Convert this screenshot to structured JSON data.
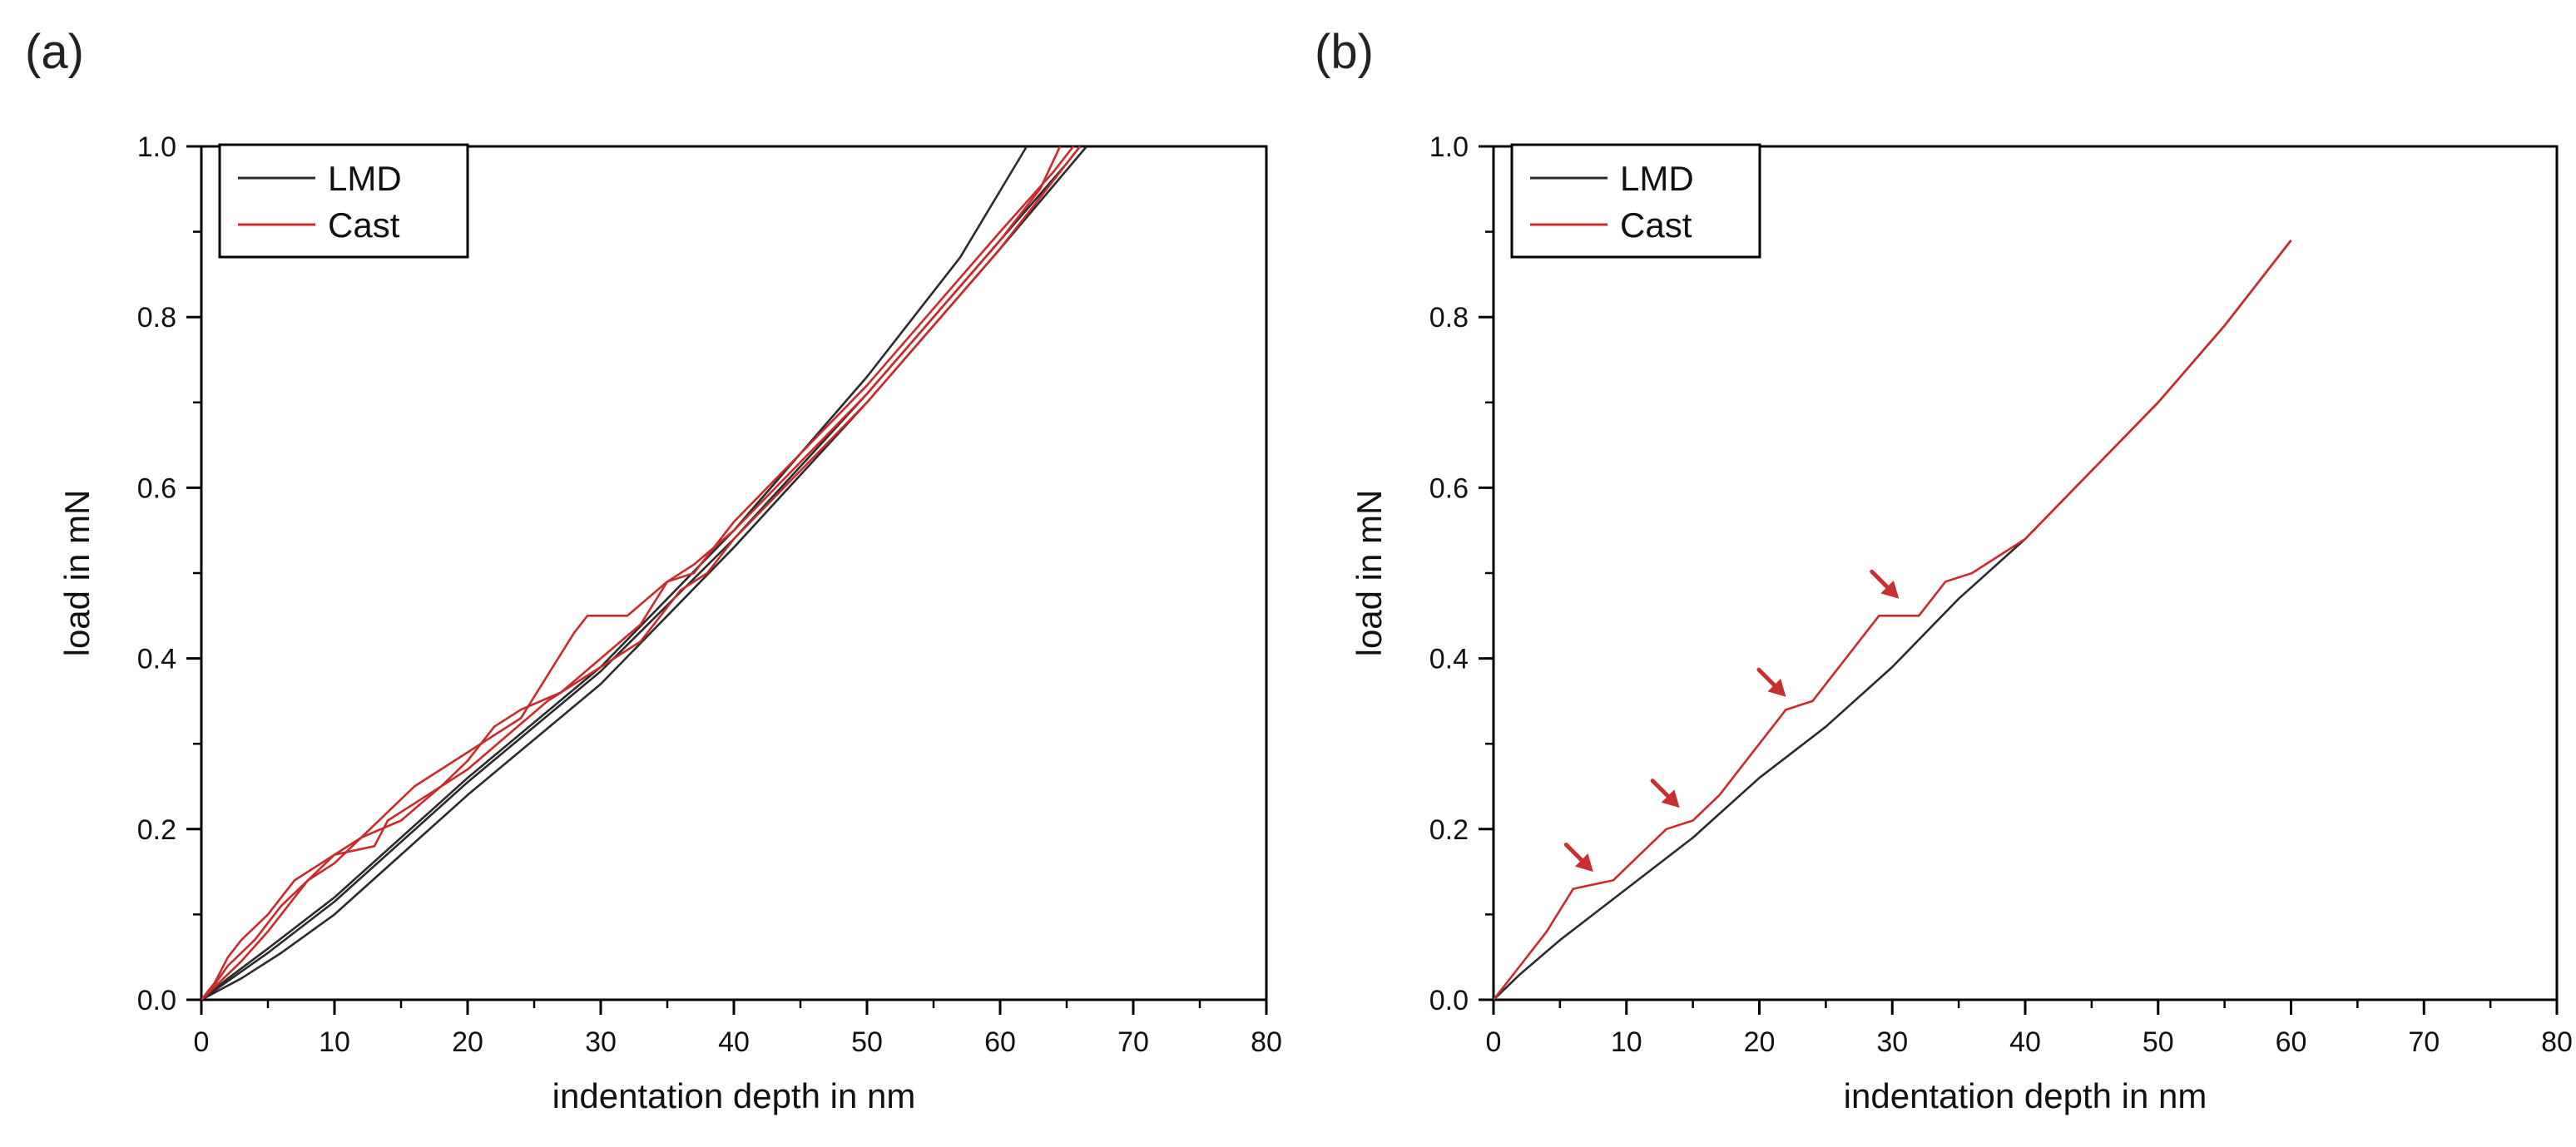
{
  "colors": {
    "lmd": "#2b2b2b",
    "cast": "#cc2a2a",
    "axis": "#000000",
    "arrow": "#c83030"
  },
  "chart_data": [
    {
      "type": "line",
      "panel_label": "(a)",
      "xlabel": "indentation depth in nm",
      "ylabel": "load in mN",
      "xlim": [
        0,
        80
      ],
      "ylim": [
        0,
        1.0
      ],
      "xticks": [
        "0",
        "10",
        "20",
        "30",
        "40",
        "50",
        "60",
        "70",
        "80"
      ],
      "yticks": [
        "0.0",
        "0.2",
        "0.4",
        "0.6",
        "0.8",
        "1.0"
      ],
      "grid": false,
      "legend": {
        "position": "top-left",
        "entries": [
          {
            "label": "LMD",
            "color": "#2b2b2b"
          },
          {
            "label": "Cast",
            "color": "#cc2a2a"
          }
        ]
      },
      "series": [
        {
          "name": "LMD",
          "points": [
            [
              0,
              0
            ],
            [
              2,
              0.025
            ],
            [
              5,
              0.06
            ],
            [
              10,
              0.12
            ],
            [
              20,
              0.26
            ],
            [
              30,
              0.39
            ],
            [
              40,
              0.55
            ],
            [
              50,
              0.73
            ],
            [
              57,
              0.87
            ],
            [
              62,
              1.0
            ]
          ]
        },
        {
          "name": "LMD",
          "points": [
            [
              0,
              0
            ],
            [
              2,
              0.022
            ],
            [
              5,
              0.055
            ],
            [
              10,
              0.115
            ],
            [
              20,
              0.255
            ],
            [
              30,
              0.385
            ],
            [
              40,
              0.54
            ],
            [
              50,
              0.71
            ],
            [
              60,
              0.89
            ],
            [
              65,
              0.98
            ],
            [
              66,
              1.0
            ]
          ]
        },
        {
          "name": "LMD",
          "points": [
            [
              0,
              0
            ],
            [
              3,
              0.025
            ],
            [
              6,
              0.055
            ],
            [
              10,
              0.1
            ],
            [
              15,
              0.17
            ],
            [
              20,
              0.24
            ],
            [
              30,
              0.37
            ],
            [
              40,
              0.53
            ],
            [
              50,
              0.7
            ],
            [
              60,
              0.88
            ],
            [
              66.5,
              1.0
            ]
          ]
        },
        {
          "name": "Cast",
          "points": [
            [
              0,
              0
            ],
            [
              1,
              0.02
            ],
            [
              2,
              0.05
            ],
            [
              3,
              0.07
            ],
            [
              5,
              0.1
            ],
            [
              7,
              0.14
            ],
            [
              8,
              0.15
            ],
            [
              10,
              0.17
            ],
            [
              12,
              0.19
            ],
            [
              14,
              0.22
            ],
            [
              16,
              0.25
            ],
            [
              18,
              0.27
            ],
            [
              20,
              0.29
            ],
            [
              22,
              0.31
            ],
            [
              24,
              0.33
            ],
            [
              26,
              0.38
            ],
            [
              28,
              0.43
            ],
            [
              29,
              0.45
            ],
            [
              32,
              0.45
            ],
            [
              35,
              0.49
            ],
            [
              37,
              0.51
            ],
            [
              40,
              0.55
            ],
            [
              45,
              0.63
            ],
            [
              50,
              0.71
            ],
            [
              55,
              0.8
            ],
            [
              60,
              0.89
            ],
            [
              63,
              0.95
            ],
            [
              64.5,
              1.0
            ]
          ]
        },
        {
          "name": "Cast",
          "points": [
            [
              0,
              0
            ],
            [
              1,
              0.015
            ],
            [
              3,
              0.045
            ],
            [
              5,
              0.08
            ],
            [
              7,
              0.12
            ],
            [
              8,
              0.14
            ],
            [
              10,
              0.17
            ],
            [
              13,
              0.18
            ],
            [
              14,
              0.21
            ],
            [
              17,
              0.24
            ],
            [
              20,
              0.27
            ],
            [
              23,
              0.31
            ],
            [
              26,
              0.35
            ],
            [
              30,
              0.39
            ],
            [
              33,
              0.42
            ],
            [
              35,
              0.46
            ],
            [
              36,
              0.48
            ],
            [
              38,
              0.5
            ],
            [
              40,
              0.54
            ],
            [
              45,
              0.62
            ],
            [
              50,
              0.7
            ],
            [
              55,
              0.79
            ],
            [
              60,
              0.88
            ],
            [
              65,
              0.98
            ],
            [
              66,
              1.0
            ]
          ]
        },
        {
          "name": "Cast",
          "points": [
            [
              0,
              0
            ],
            [
              1,
              0.018
            ],
            [
              2,
              0.04
            ],
            [
              4,
              0.07
            ],
            [
              6,
              0.11
            ],
            [
              8,
              0.14
            ],
            [
              10,
              0.16
            ],
            [
              12,
              0.19
            ],
            [
              15,
              0.21
            ],
            [
              18,
              0.25
            ],
            [
              20,
              0.28
            ],
            [
              22,
              0.32
            ],
            [
              24,
              0.34
            ],
            [
              27,
              0.36
            ],
            [
              30,
              0.4
            ],
            [
              33,
              0.44
            ],
            [
              35,
              0.49
            ],
            [
              37,
              0.5
            ],
            [
              40,
              0.56
            ],
            [
              45,
              0.64
            ],
            [
              50,
              0.72
            ],
            [
              55,
              0.81
            ],
            [
              60,
              0.9
            ],
            [
              64,
              0.97
            ],
            [
              65.5,
              1.0
            ]
          ]
        }
      ]
    },
    {
      "type": "line",
      "panel_label": "(b)",
      "xlabel": "indentation depth in nm",
      "ylabel": "load in mN",
      "xlim": [
        0,
        80
      ],
      "ylim": [
        0,
        1.0
      ],
      "xticks": [
        "0",
        "10",
        "20",
        "30",
        "40",
        "50",
        "60",
        "70",
        "80"
      ],
      "yticks": [
        "0.0",
        "0.2",
        "0.4",
        "0.6",
        "0.8",
        "1.0"
      ],
      "grid": false,
      "legend": {
        "position": "top-left",
        "entries": [
          {
            "label": "LMD",
            "color": "#2b2b2b"
          },
          {
            "label": "Cast",
            "color": "#cc2a2a"
          }
        ]
      },
      "series": [
        {
          "name": "LMD",
          "points": [
            [
              0,
              0
            ],
            [
              2,
              0.03
            ],
            [
              5,
              0.07
            ],
            [
              10,
              0.13
            ],
            [
              15,
              0.19
            ],
            [
              20,
              0.26
            ],
            [
              25,
              0.32
            ],
            [
              30,
              0.39
            ],
            [
              35,
              0.47
            ],
            [
              40,
              0.54
            ],
            [
              45,
              0.62
            ],
            [
              50,
              0.7
            ],
            [
              55,
              0.79
            ],
            [
              60,
              0.89
            ]
          ]
        },
        {
          "name": "Cast",
          "points": [
            [
              0,
              0
            ],
            [
              2,
              0.04
            ],
            [
              4,
              0.08
            ],
            [
              6,
              0.13
            ],
            [
              9,
              0.14
            ],
            [
              11,
              0.17
            ],
            [
              13,
              0.2
            ],
            [
              15,
              0.21
            ],
            [
              17,
              0.24
            ],
            [
              19,
              0.28
            ],
            [
              20,
              0.3
            ],
            [
              21,
              0.32
            ],
            [
              22,
              0.34
            ],
            [
              24,
              0.35
            ],
            [
              26,
              0.39
            ],
            [
              28,
              0.43
            ],
            [
              29,
              0.45
            ],
            [
              32,
              0.45
            ],
            [
              34,
              0.49
            ],
            [
              36,
              0.5
            ],
            [
              38,
              0.52
            ],
            [
              40,
              0.54
            ],
            [
              45,
              0.62
            ],
            [
              50,
              0.7
            ],
            [
              55,
              0.79
            ],
            [
              60,
              0.89
            ]
          ]
        }
      ],
      "annotations": [
        {
          "type": "arrow",
          "x": 7.5,
          "y": 0.15
        },
        {
          "type": "arrow",
          "x": 14,
          "y": 0.225
        },
        {
          "type": "arrow",
          "x": 22,
          "y": 0.355
        },
        {
          "type": "arrow",
          "x": 30.5,
          "y": 0.47
        }
      ]
    }
  ]
}
